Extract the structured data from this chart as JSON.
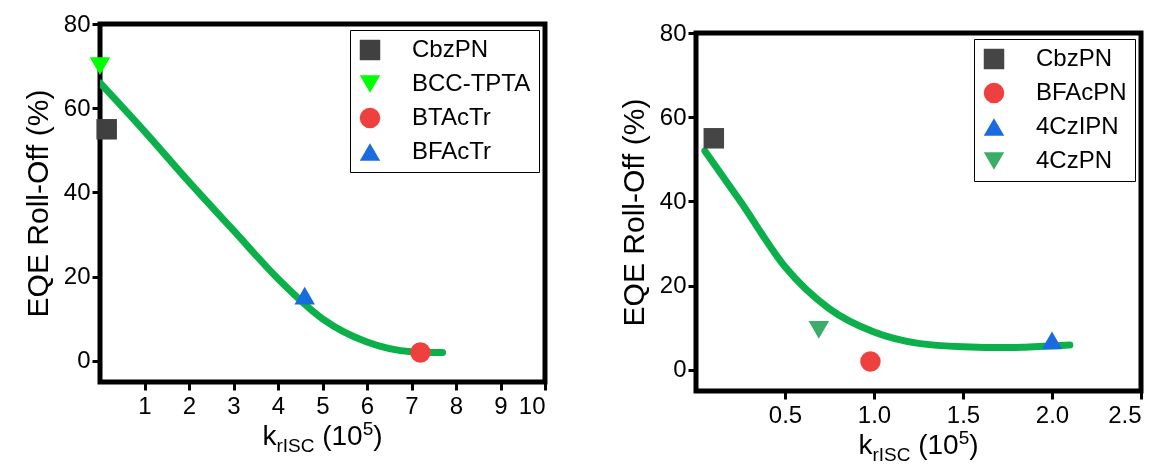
{
  "chart_data": [
    {
      "type": "scatter",
      "xlabel": "k$_{rISC}$ (10$^{5}$)",
      "ylabel": "EQE Roll-Off (%)",
      "xlim": [
        0,
        10
      ],
      "xticks": [
        1,
        2,
        3,
        4,
        5,
        6,
        7,
        8,
        9,
        10
      ],
      "ylim": [
        -5,
        80
      ],
      "yticks": [
        0,
        20,
        40,
        60,
        80
      ],
      "grid": false,
      "legend": "top right",
      "series": [
        {
          "name": "CbzPN",
          "color": "#404040",
          "marker": "square",
          "x": [
            0.15
          ],
          "values": [
            55
          ]
        },
        {
          "name": "BCC-TPTA",
          "color": "#00ff00",
          "marker": "triangle-down",
          "x": [
            0
          ],
          "values": [
            70
          ]
        },
        {
          "name": "BTAcTr",
          "color": "#ef4040",
          "marker": "circle",
          "x": [
            7.2
          ],
          "values": [
            2
          ]
        },
        {
          "name": "BFAcTr",
          "color": "#1a6be0",
          "marker": "triangle",
          "x": [
            4.6
          ],
          "values": [
            15.5
          ]
        },
        {
          "type": "line",
          "color": "#0bb04b",
          "marker": "none",
          "x": [
            0,
            1,
            2,
            3,
            4,
            5,
            6,
            7,
            7.7
          ],
          "values": [
            66,
            54.5,
            42.5,
            31,
            19.5,
            10,
            4.5,
            2.2,
            2
          ]
        }
      ]
    },
    {
      "type": "scatter",
      "xlabel": "k$_{rISC}$ (10$^{5}$)",
      "ylabel": "EQE Roll-Off (%)",
      "xlim": [
        0,
        2.5
      ],
      "xticks": [
        0.5,
        {
          "value": 1,
          "label": "1.0"
        },
        1.5,
        {
          "value": 2,
          "label": "2.0"
        },
        2.5
      ],
      "ylim": [
        -5,
        80
      ],
      "yticks": [
        0,
        20,
        40,
        60,
        80
      ],
      "grid": false,
      "legend": "top right",
      "series": [
        {
          "name": "CbzPN",
          "color": "#454545",
          "marker": "square",
          "x": [
            0.1
          ],
          "values": [
            55
          ]
        },
        {
          "name": "BFAcPN",
          "color": "#ef4040",
          "marker": "circle",
          "x": [
            0.98
          ],
          "values": [
            2
          ]
        },
        {
          "name": "4CzIPN",
          "color": "#1a6be0",
          "marker": "triangle",
          "x": [
            2
          ],
          "values": [
            7
          ]
        },
        {
          "name": "4CzPN",
          "color": "#3aae68",
          "marker": "triangle-down",
          "x": [
            0.69
          ],
          "values": [
            9.5
          ]
        },
        {
          "type": "line",
          "color": "#0bb04b",
          "marker": "none",
          "x": [
            0.05,
            0.25,
            0.5,
            0.75,
            1,
            1.25,
            1.5,
            1.75,
            1.85,
            2.1
          ],
          "values": [
            52,
            40,
            24.5,
            14.5,
            9,
            6.3,
            5.5,
            5.3,
            5.4,
            5.9
          ]
        }
      ]
    }
  ]
}
